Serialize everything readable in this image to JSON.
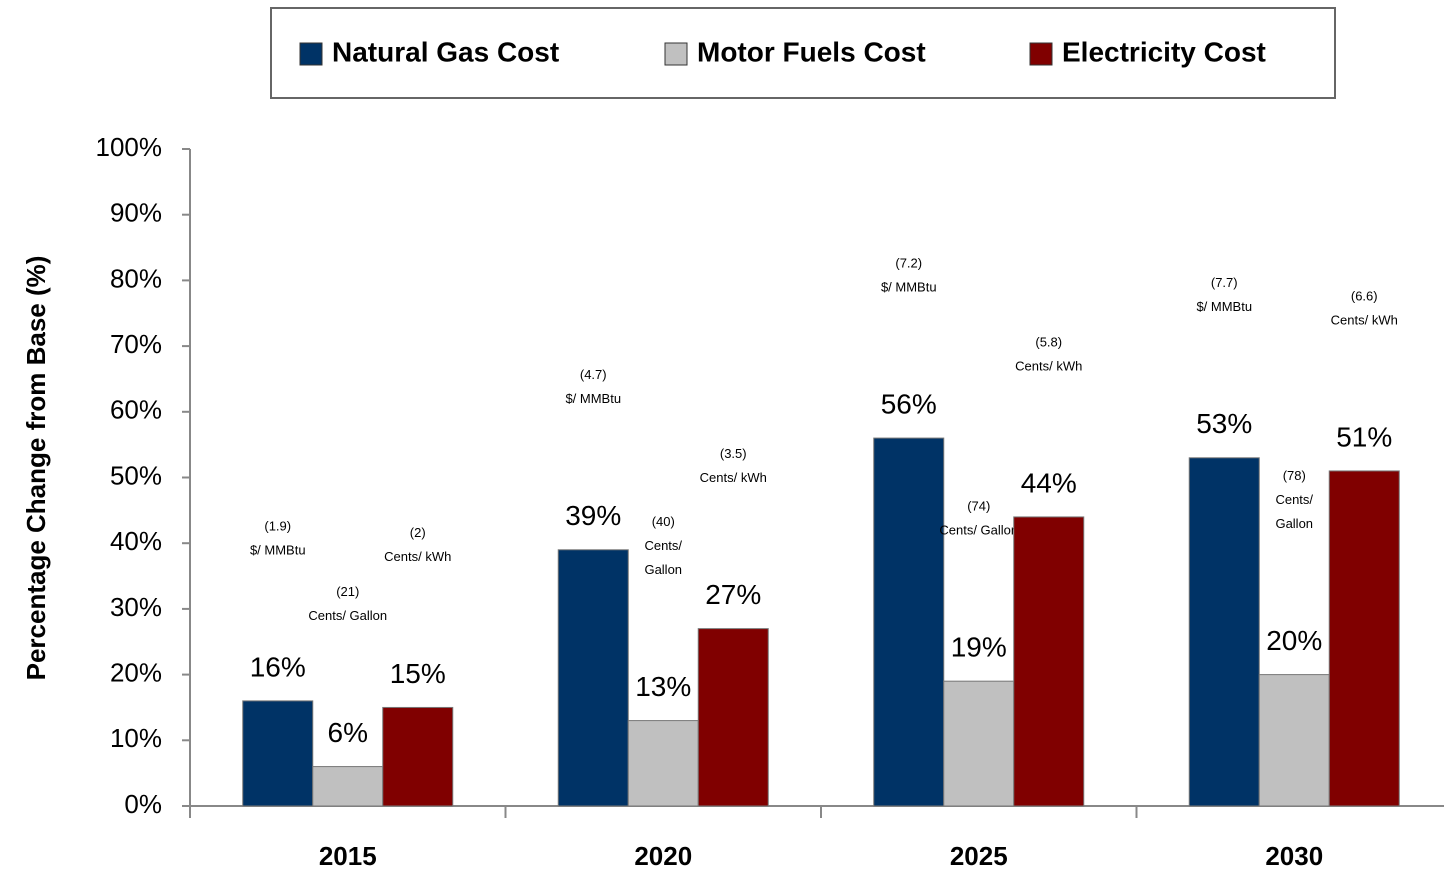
{
  "chart_data": {
    "type": "bar",
    "y_label": "Percentage Change from Base (%)",
    "categories": [
      "2015",
      "2020",
      "2025",
      "2030"
    ],
    "series": [
      {
        "name": "Natural Gas Cost",
        "color": "#003366",
        "values": [
          16,
          39,
          56,
          53
        ],
        "value_labels": [
          "16%",
          "39%",
          "56%",
          "53%"
        ],
        "annotations": [
          [
            "(1.9)",
            "$/ MMBtu"
          ],
          [
            "(4.7)",
            "$/ MMBtu"
          ],
          [
            "(7.2)",
            "$/ MMBtu"
          ],
          [
            "(7.7)",
            "$/ MMBtu"
          ]
        ]
      },
      {
        "name": "Motor Fuels Cost",
        "color": "#c0c0c0",
        "values": [
          6,
          13,
          19,
          20
        ],
        "value_labels": [
          "6%",
          "13%",
          "19%",
          "20%"
        ],
        "annotations": [
          [
            "(21)",
            "Cents/ Gallon"
          ],
          [
            "(40)",
            "Cents/",
            "Gallon"
          ],
          [
            "(74)",
            "Cents/ Gallon"
          ],
          [
            "(78)",
            "Cents/",
            "Gallon"
          ]
        ]
      },
      {
        "name": "Electricity Cost",
        "color": "#800000",
        "values": [
          15,
          27,
          44,
          51
        ],
        "value_labels": [
          "15%",
          "27%",
          "44%",
          "51%"
        ],
        "annotations": [
          [
            "(2)",
            "Cents/ kWh"
          ],
          [
            "(3.5)",
            "Cents/ kWh"
          ],
          [
            "(5.8)",
            "Cents/ kWh"
          ],
          [
            "(6.6)",
            "Cents/ kWh"
          ]
        ]
      }
    ],
    "ylim": [
      0,
      100
    ],
    "yticks": [
      {
        "value": 0,
        "label": "0%"
      },
      {
        "value": 10,
        "label": "10%"
      },
      {
        "value": 20,
        "label": "20%"
      },
      {
        "value": 30,
        "label": "30%"
      },
      {
        "value": 40,
        "label": "40%"
      },
      {
        "value": 50,
        "label": "50%"
      },
      {
        "value": 60,
        "label": "60%"
      },
      {
        "value": 70,
        "label": "70%"
      },
      {
        "value": 80,
        "label": "80%"
      },
      {
        "value": 90,
        "label": "90%"
      },
      {
        "value": 100,
        "label": "100%"
      }
    ],
    "grid": false,
    "legend": "top"
  }
}
